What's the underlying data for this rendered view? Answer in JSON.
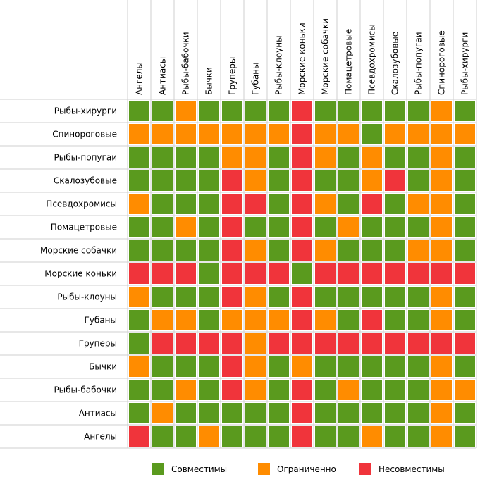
{
  "chart_data": {
    "type": "heatmap",
    "title": "",
    "columns": [
      "Ангелы",
      "Антиасы",
      "Рыбы-бабочки",
      "Бычки",
      "Груперы",
      "Губаны",
      "Рыбы-клоуны",
      "Морские коньки",
      "Морские собачки",
      "Помацетровые",
      "Псевдохромисы",
      "Скалозубовые",
      "Рыбы-попугаи",
      "Спинороговые",
      "Рыбы-хирурги"
    ],
    "rows": [
      "Рыбы-хирурги",
      "Спинороговые",
      "Рыбы-попугаи",
      "Скалозубовые",
      "Псевдохромисы",
      "Помацетровые",
      "Морские собачки",
      "Морские коньки",
      "Рыбы-клоуны",
      "Губаны",
      "Груперы",
      "Бычки",
      "Рыбы-бабочки",
      "Антиасы",
      "Ангелы"
    ],
    "legend": [
      {
        "key": "C",
        "label": "Совместимы",
        "color": "#5a9a1e"
      },
      {
        "key": "L",
        "label": "Ограниченно",
        "color": "#ff8c00"
      },
      {
        "key": "N",
        "label": "Несовместимы",
        "color": "#f0343b"
      }
    ],
    "legend_position": "bottom",
    "values": [
      [
        "C",
        "C",
        "L",
        "C",
        "C",
        "C",
        "C",
        "N",
        "C",
        "C",
        "C",
        "C",
        "C",
        "L",
        "C"
      ],
      [
        "L",
        "L",
        "L",
        "L",
        "L",
        "L",
        "L",
        "N",
        "L",
        "L",
        "C",
        "L",
        "L",
        "L",
        "L"
      ],
      [
        "C",
        "C",
        "C",
        "C",
        "L",
        "L",
        "C",
        "N",
        "L",
        "C",
        "L",
        "C",
        "C",
        "L",
        "C"
      ],
      [
        "C",
        "C",
        "C",
        "C",
        "N",
        "L",
        "C",
        "N",
        "C",
        "C",
        "L",
        "N",
        "C",
        "L",
        "C"
      ],
      [
        "L",
        "C",
        "C",
        "C",
        "N",
        "N",
        "C",
        "N",
        "L",
        "C",
        "N",
        "C",
        "L",
        "L",
        "C"
      ],
      [
        "C",
        "C",
        "L",
        "C",
        "N",
        "C",
        "C",
        "N",
        "C",
        "L",
        "C",
        "C",
        "C",
        "L",
        "C"
      ],
      [
        "C",
        "C",
        "C",
        "C",
        "N",
        "L",
        "C",
        "N",
        "L",
        "C",
        "C",
        "C",
        "L",
        "L",
        "C"
      ],
      [
        "N",
        "N",
        "N",
        "C",
        "N",
        "N",
        "N",
        "C",
        "N",
        "N",
        "N",
        "N",
        "N",
        "N",
        "N"
      ],
      [
        "L",
        "C",
        "C",
        "C",
        "N",
        "L",
        "C",
        "N",
        "C",
        "C",
        "C",
        "C",
        "C",
        "L",
        "C"
      ],
      [
        "C",
        "L",
        "L",
        "C",
        "L",
        "L",
        "L",
        "N",
        "L",
        "C",
        "N",
        "C",
        "C",
        "L",
        "C"
      ],
      [
        "C",
        "N",
        "N",
        "N",
        "N",
        "L",
        "N",
        "N",
        "N",
        "N",
        "N",
        "N",
        "N",
        "N",
        "N"
      ],
      [
        "L",
        "C",
        "C",
        "C",
        "N",
        "L",
        "C",
        "L",
        "C",
        "C",
        "C",
        "C",
        "C",
        "L",
        "C"
      ],
      [
        "C",
        "C",
        "L",
        "C",
        "N",
        "L",
        "C",
        "N",
        "C",
        "L",
        "C",
        "C",
        "C",
        "L",
        "L"
      ],
      [
        "C",
        "L",
        "C",
        "C",
        "C",
        "C",
        "C",
        "N",
        "C",
        "C",
        "C",
        "C",
        "C",
        "L",
        "C"
      ],
      [
        "N",
        "C",
        "C",
        "L",
        "C",
        "C",
        "C",
        "N",
        "C",
        "C",
        "L",
        "C",
        "C",
        "L",
        "C"
      ]
    ]
  }
}
